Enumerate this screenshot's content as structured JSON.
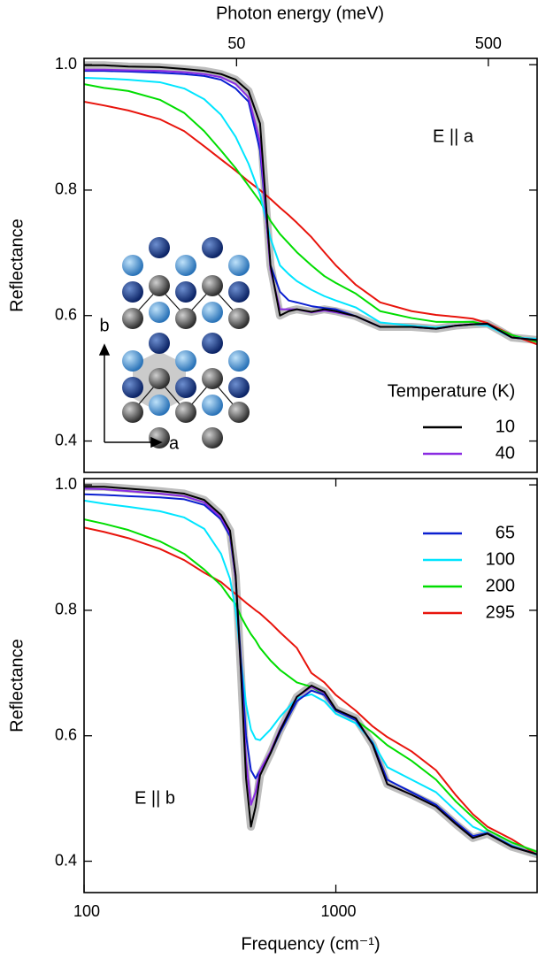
{
  "chart_data": [
    {
      "type": "line",
      "log_x": true,
      "x2label": "Photon energy (meV)",
      "ylabel": "Reflectance",
      "legend_title": "Temperature (K)",
      "annotations": [
        "E || a",
        "b",
        "a"
      ],
      "xlim": [
        100,
        6300
      ],
      "ylim": [
        0.35,
        1.01
      ],
      "x2ticks": [
        {
          "value": 403.3,
          "label": "50"
        },
        {
          "value": 4033,
          "label": "500"
        }
      ],
      "yticks": [
        0.4,
        0.6,
        0.8,
        {
          "value": 1,
          "label": "1.0"
        }
      ],
      "fit_band_color": "#bdbdbd",
      "x": [
        100,
        120,
        150,
        200,
        250,
        300,
        350,
        400,
        450,
        500,
        550,
        600,
        650,
        700,
        800,
        900,
        1000,
        1200,
        1500,
        2000,
        2500,
        3000,
        3500,
        4000,
        5000,
        6300
      ],
      "series": [
        {
          "name": "10",
          "color": "#000000",
          "values": [
            0.999,
            0.999,
            0.997,
            0.996,
            0.993,
            0.99,
            0.985,
            0.976,
            0.958,
            0.906,
            0.68,
            0.6,
            0.607,
            0.61,
            0.606,
            0.61,
            0.607,
            0.599,
            0.582,
            0.582,
            0.579,
            0.584,
            0.586,
            0.587,
            0.565,
            0.561
          ]
        },
        {
          "name": "40",
          "color": "#8a2be2",
          "values": [
            0.992,
            0.992,
            0.991,
            0.99,
            0.988,
            0.985,
            0.98,
            0.969,
            0.948,
            0.877,
            0.673,
            0.61,
            0.61,
            0.61,
            0.605,
            0.608,
            0.605,
            0.599,
            0.582,
            0.582,
            0.579,
            0.584,
            0.586,
            0.587,
            0.565,
            0.561
          ]
        },
        {
          "color": "#0a1fd0",
          "values": [
            0.99,
            0.99,
            0.989,
            0.987,
            0.985,
            0.982,
            0.976,
            0.962,
            0.941,
            0.863,
            0.68,
            0.638,
            0.624,
            0.621,
            0.615,
            0.612,
            0.61,
            0.599,
            0.582,
            0.582,
            0.579,
            0.584,
            0.586,
            0.587,
            0.565,
            0.561
          ]
        },
        {
          "color": "#00e5ff",
          "values": [
            0.979,
            0.978,
            0.976,
            0.972,
            0.962,
            0.945,
            0.92,
            0.885,
            0.842,
            0.793,
            0.723,
            0.68,
            0.666,
            0.655,
            0.641,
            0.631,
            0.624,
            0.613,
            0.589,
            0.584,
            0.581,
            0.584,
            0.586,
            0.584,
            0.565,
            0.563
          ]
        },
        {
          "color": "#00dd00",
          "values": [
            0.969,
            0.963,
            0.958,
            0.944,
            0.923,
            0.894,
            0.863,
            0.835,
            0.807,
            0.782,
            0.751,
            0.73,
            0.715,
            0.701,
            0.68,
            0.663,
            0.652,
            0.635,
            0.607,
            0.596,
            0.59,
            0.59,
            0.59,
            0.585,
            0.569,
            0.558
          ]
        },
        {
          "color": "#e8140c",
          "values": [
            0.941,
            0.935,
            0.927,
            0.913,
            0.894,
            0.87,
            0.849,
            0.831,
            0.814,
            0.8,
            0.786,
            0.772,
            0.76,
            0.748,
            0.725,
            0.701,
            0.68,
            0.649,
            0.621,
            0.607,
            0.601,
            0.598,
            0.595,
            0.588,
            0.569,
            0.554
          ]
        }
      ]
    },
    {
      "type": "line",
      "log_x": true,
      "xlabel": "Frequency (cm⁻¹)",
      "ylabel": "Reflectance",
      "annotations": [
        "E || b"
      ],
      "xlim": [
        100,
        6300
      ],
      "ylim": [
        0.35,
        1.01
      ],
      "xticks": [
        100,
        1000
      ],
      "yticks": [
        0.4,
        0.6,
        0.8,
        {
          "value": 1,
          "label": "1.0"
        }
      ],
      "fit_band_color": "#bdbdbd",
      "x": [
        100,
        120,
        150,
        200,
        250,
        300,
        350,
        380,
        400,
        420,
        440,
        460,
        480,
        500,
        550,
        600,
        700,
        800,
        900,
        1000,
        1200,
        1400,
        1600,
        2000,
        2500,
        3000,
        3500,
        4000,
        5000,
        6300
      ],
      "series": [
        {
          "color": "#000000",
          "values": [
            0.997,
            0.997,
            0.994,
            0.99,
            0.986,
            0.976,
            0.952,
            0.927,
            0.856,
            0.701,
            0.532,
            0.455,
            0.487,
            0.537,
            0.572,
            0.608,
            0.662,
            0.68,
            0.67,
            0.642,
            0.628,
            0.586,
            0.523,
            0.506,
            0.487,
            0.459,
            0.437,
            0.444,
            0.423,
            0.411
          ]
        },
        {
          "color": "#8a2be2",
          "values": [
            0.994,
            0.993,
            0.99,
            0.986,
            0.982,
            0.972,
            0.948,
            0.923,
            0.85,
            0.7,
            0.56,
            0.49,
            0.51,
            0.545,
            0.575,
            0.61,
            0.662,
            0.678,
            0.668,
            0.642,
            0.628,
            0.586,
            0.523,
            0.506,
            0.487,
            0.459,
            0.437,
            0.444,
            0.423,
            0.411
          ]
        },
        {
          "name": "65",
          "color": "#0a1fd0",
          "values": [
            0.985,
            0.984,
            0.982,
            0.98,
            0.977,
            0.968,
            0.945,
            0.918,
            0.85,
            0.72,
            0.6,
            0.545,
            0.532,
            0.545,
            0.572,
            0.605,
            0.655,
            0.672,
            0.665,
            0.64,
            0.625,
            0.588,
            0.53,
            0.51,
            0.49,
            0.462,
            0.44,
            0.445,
            0.424,
            0.411
          ]
        },
        {
          "name": "100",
          "color": "#00e5ff",
          "values": [
            0.975,
            0.97,
            0.965,
            0.958,
            0.948,
            0.93,
            0.89,
            0.85,
            0.8,
            0.72,
            0.65,
            0.61,
            0.595,
            0.593,
            0.61,
            0.63,
            0.66,
            0.666,
            0.655,
            0.635,
            0.62,
            0.59,
            0.55,
            0.53,
            0.51,
            0.48,
            0.455,
            0.445,
            0.425,
            0.41
          ]
        },
        {
          "name": "200",
          "color": "#00dd00",
          "values": [
            0.945,
            0.938,
            0.928,
            0.91,
            0.89,
            0.865,
            0.84,
            0.82,
            0.81,
            0.79,
            0.775,
            0.762,
            0.752,
            0.74,
            0.72,
            0.705,
            0.685,
            0.678,
            0.665,
            0.64,
            0.625,
            0.605,
            0.585,
            0.56,
            0.53,
            0.495,
            0.47,
            0.45,
            0.43,
            0.415
          ]
        },
        {
          "name": "295",
          "color": "#e8140c",
          "values": [
            0.932,
            0.925,
            0.915,
            0.898,
            0.88,
            0.86,
            0.845,
            0.833,
            0.826,
            0.819,
            0.812,
            0.806,
            0.8,
            0.795,
            0.78,
            0.765,
            0.74,
            0.7,
            0.685,
            0.665,
            0.64,
            0.615,
            0.598,
            0.575,
            0.545,
            0.505,
            0.475,
            0.455,
            0.435,
            0.41
          ]
        }
      ]
    }
  ]
}
